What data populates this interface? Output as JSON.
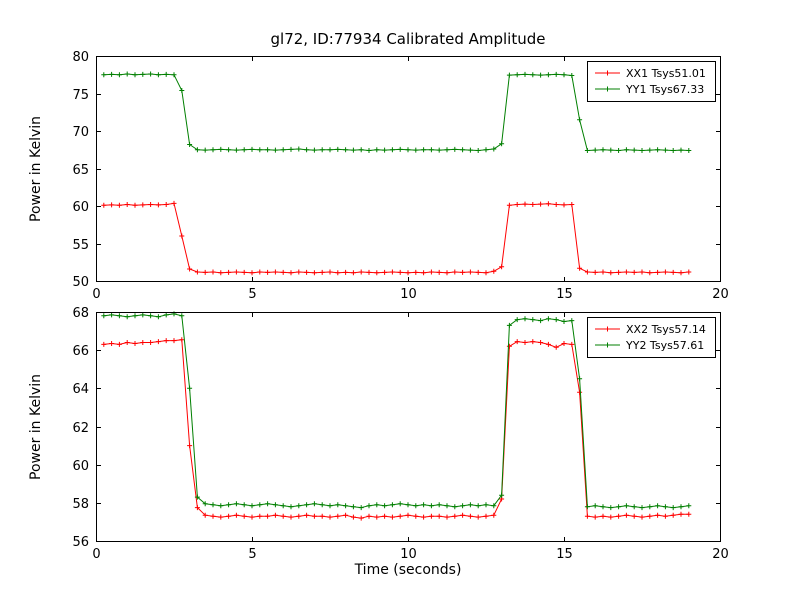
{
  "chart_data": {
    "type": "line",
    "title": "gl72, ID:77934 Calibrated Amplitude",
    "background": "#ffffff",
    "axes_color": "#000000",
    "marker": "+",
    "x": [
      0.25,
      0.5,
      0.75,
      1,
      1.25,
      1.5,
      1.75,
      2,
      2.25,
      2.5,
      2.75,
      3,
      3.25,
      3.5,
      3.75,
      4,
      4.25,
      4.5,
      4.75,
      5,
      5.25,
      5.5,
      5.75,
      6,
      6.25,
      6.5,
      6.75,
      7,
      7.25,
      7.5,
      7.75,
      8,
      8.25,
      8.5,
      8.75,
      9,
      9.25,
      9.5,
      9.75,
      10,
      10.25,
      10.5,
      10.75,
      11,
      11.25,
      11.5,
      11.75,
      12,
      12.25,
      12.5,
      12.75,
      13,
      13.25,
      13.5,
      13.75,
      14,
      14.25,
      14.5,
      14.75,
      15,
      15.25,
      15.5,
      15.75,
      16,
      16.25,
      16.5,
      16.75,
      17,
      17.25,
      17.5,
      17.75,
      18,
      18.25,
      18.5,
      18.75,
      19
    ],
    "subplots": [
      {
        "ylabel": "Power in Kelvin",
        "xlim": [
          0,
          20
        ],
        "ylim": [
          50,
          80
        ],
        "xticks": [
          0,
          5,
          10,
          15,
          20
        ],
        "yticks": [
          50,
          55,
          60,
          65,
          70,
          75,
          80
        ],
        "legend_position": "upper right",
        "series": [
          {
            "name": "XX1",
            "label": "XX1 Tsys51.01",
            "color": "#ff0000",
            "values": [
              60.1,
              60.15,
              60.1,
              60.2,
              60.1,
              60.15,
              60.2,
              60.15,
              60.2,
              60.35,
              56.0,
              51.6,
              51.2,
              51.15,
              51.2,
              51.1,
              51.15,
              51.2,
              51.15,
              51.1,
              51.2,
              51.15,
              51.2,
              51.15,
              51.1,
              51.2,
              51.15,
              51.1,
              51.15,
              51.2,
              51.1,
              51.15,
              51.1,
              51.2,
              51.15,
              51.1,
              51.15,
              51.2,
              51.15,
              51.1,
              51.15,
              51.1,
              51.2,
              51.15,
              51.1,
              51.2,
              51.15,
              51.2,
              51.15,
              51.1,
              51.3,
              51.9,
              60.1,
              60.2,
              60.25,
              60.2,
              60.25,
              60.3,
              60.2,
              60.15,
              60.2,
              51.7,
              51.2,
              51.15,
              51.2,
              51.1,
              51.15,
              51.2,
              51.15,
              51.2,
              51.1,
              51.15,
              51.2,
              51.15,
              51.1,
              51.2
            ]
          },
          {
            "name": "YY1",
            "label": "YY1 Tsys67.33",
            "color": "#007f00",
            "values": [
              77.5,
              77.55,
              77.5,
              77.6,
              77.5,
              77.55,
              77.6,
              77.5,
              77.55,
              77.5,
              75.4,
              68.2,
              67.5,
              67.45,
              67.5,
              67.55,
              67.5,
              67.45,
              67.5,
              67.55,
              67.5,
              67.5,
              67.45,
              67.5,
              67.55,
              67.6,
              67.5,
              67.45,
              67.5,
              67.5,
              67.55,
              67.5,
              67.45,
              67.5,
              67.4,
              67.5,
              67.45,
              67.5,
              67.55,
              67.5,
              67.45,
              67.5,
              67.5,
              67.45,
              67.5,
              67.55,
              67.5,
              67.45,
              67.4,
              67.5,
              67.6,
              68.3,
              77.45,
              77.5,
              77.55,
              77.5,
              77.45,
              77.5,
              77.55,
              77.5,
              77.4,
              71.5,
              67.4,
              67.45,
              67.5,
              67.45,
              67.4,
              67.5,
              67.45,
              67.4,
              67.45,
              67.5,
              67.45,
              67.4,
              67.45,
              67.4
            ]
          }
        ]
      },
      {
        "ylabel": "Power in Kelvin",
        "xlabel": "Time (seconds)",
        "xlim": [
          0,
          20
        ],
        "ylim": [
          56,
          68
        ],
        "xticks": [
          0,
          5,
          10,
          15,
          20
        ],
        "yticks": [
          56,
          58,
          60,
          62,
          64,
          66,
          68
        ],
        "legend_position": "upper right",
        "series": [
          {
            "name": "XX2",
            "label": "XX2 Tsys57.14",
            "color": "#ff0000",
            "values": [
              66.3,
              66.35,
              66.3,
              66.4,
              66.35,
              66.4,
              66.4,
              66.45,
              66.5,
              66.5,
              66.55,
              61.0,
              57.75,
              57.35,
              57.3,
              57.25,
              57.3,
              57.35,
              57.3,
              57.25,
              57.3,
              57.3,
              57.35,
              57.3,
              57.25,
              57.3,
              57.35,
              57.3,
              57.3,
              57.25,
              57.3,
              57.35,
              57.25,
              57.2,
              57.3,
              57.25,
              57.3,
              57.25,
              57.3,
              57.35,
              57.3,
              57.25,
              57.3,
              57.3,
              57.25,
              57.3,
              57.35,
              57.3,
              57.25,
              57.3,
              57.35,
              58.2,
              66.2,
              66.45,
              66.4,
              66.45,
              66.4,
              66.3,
              66.15,
              66.35,
              66.3,
              63.8,
              57.3,
              57.25,
              57.3,
              57.25,
              57.3,
              57.35,
              57.3,
              57.25,
              57.3,
              57.35,
              57.3,
              57.35,
              57.4,
              57.4
            ]
          },
          {
            "name": "YY2",
            "label": "YY2 Tsys57.61",
            "color": "#007f00",
            "values": [
              67.8,
              67.85,
              67.8,
              67.75,
              67.8,
              67.85,
              67.8,
              67.75,
              67.85,
              67.9,
              67.8,
              64.0,
              58.3,
              57.95,
              57.9,
              57.85,
              57.9,
              57.95,
              57.9,
              57.85,
              57.9,
              57.95,
              57.9,
              57.85,
              57.8,
              57.85,
              57.9,
              57.95,
              57.9,
              57.85,
              57.9,
              57.85,
              57.8,
              57.75,
              57.85,
              57.9,
              57.85,
              57.9,
              57.95,
              57.9,
              57.85,
              57.9,
              57.85,
              57.9,
              57.85,
              57.8,
              57.85,
              57.9,
              57.85,
              57.9,
              57.85,
              58.4,
              67.3,
              67.6,
              67.65,
              67.6,
              67.55,
              67.65,
              67.6,
              67.5,
              67.55,
              64.5,
              57.8,
              57.85,
              57.8,
              57.75,
              57.8,
              57.85,
              57.8,
              57.75,
              57.8,
              57.85,
              57.8,
              57.75,
              57.8,
              57.85
            ]
          }
        ]
      }
    ]
  }
}
